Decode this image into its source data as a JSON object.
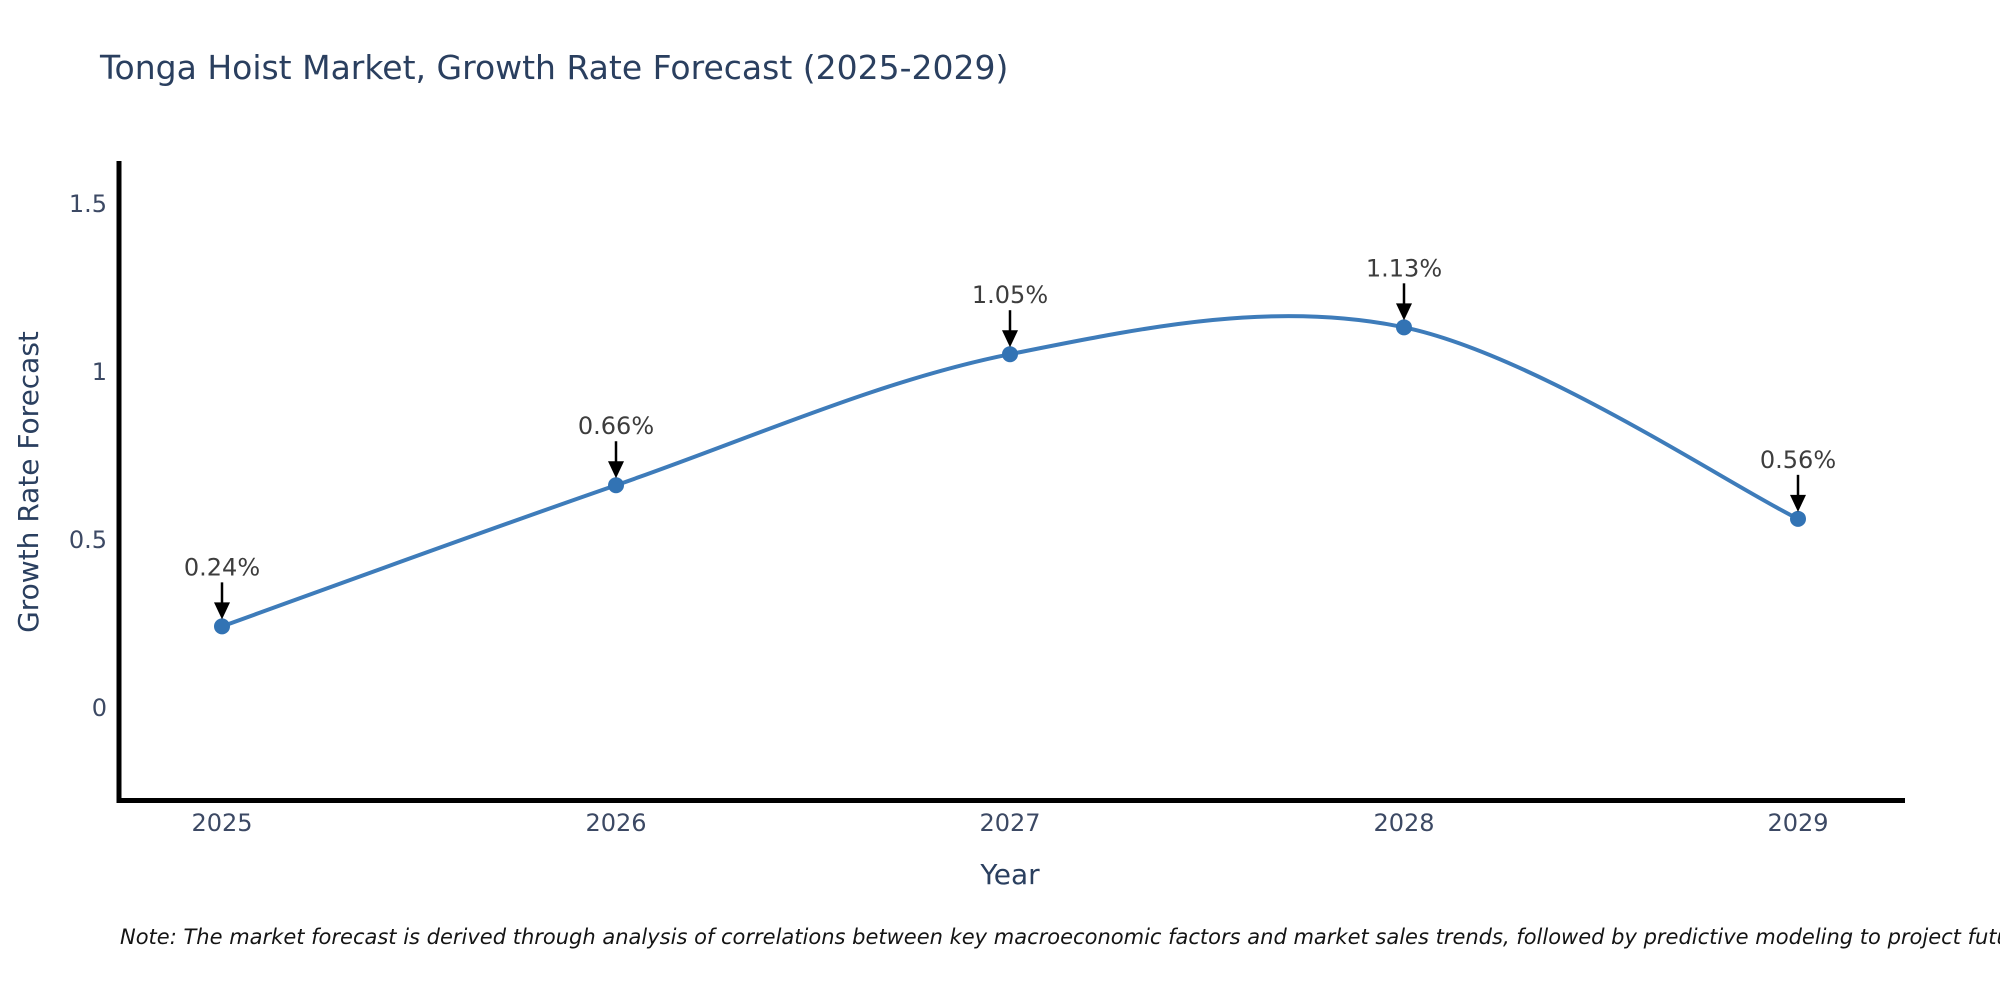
{
  "title": "Tonga Hoist Market, Growth Rate Forecast (2025-2029)",
  "note": "Note: The market forecast is derived through analysis of correlations between key macroeconomic factors and market sales trends, followed by predictive modeling to project future sales",
  "chart_data": {
    "type": "line",
    "title": "Tonga Hoist Market, Growth Rate Forecast (2025-2029)",
    "xlabel": "Year",
    "ylabel": "Growth Rate Forecast",
    "categories": [
      "2025",
      "2026",
      "2027",
      "2028",
      "2029"
    ],
    "series": [
      {
        "name": "Growth Rate Forecast",
        "values": [
          0.24,
          0.66,
          1.05,
          1.13,
          0.56
        ]
      }
    ],
    "point_labels": [
      "0.24%",
      "0.66%",
      "1.05%",
      "1.13%",
      "0.56%"
    ],
    "yticks": [
      0,
      0.5,
      1,
      1.5
    ],
    "ytick_labels": [
      "0",
      "0.5",
      "1",
      "1.5"
    ],
    "ylim": [
      -0.28,
      1.65
    ],
    "line_shape": "spline",
    "grid": false,
    "legend": false,
    "colors": {
      "line": "#3e7cba",
      "marker": "#3273b4",
      "axis": "#000000",
      "arrow": "#000000",
      "title_text": "#2a3f5f",
      "tick_text": "#3c4964",
      "annotation_text": "#3d3d3d",
      "background": "#ffffff"
    }
  }
}
